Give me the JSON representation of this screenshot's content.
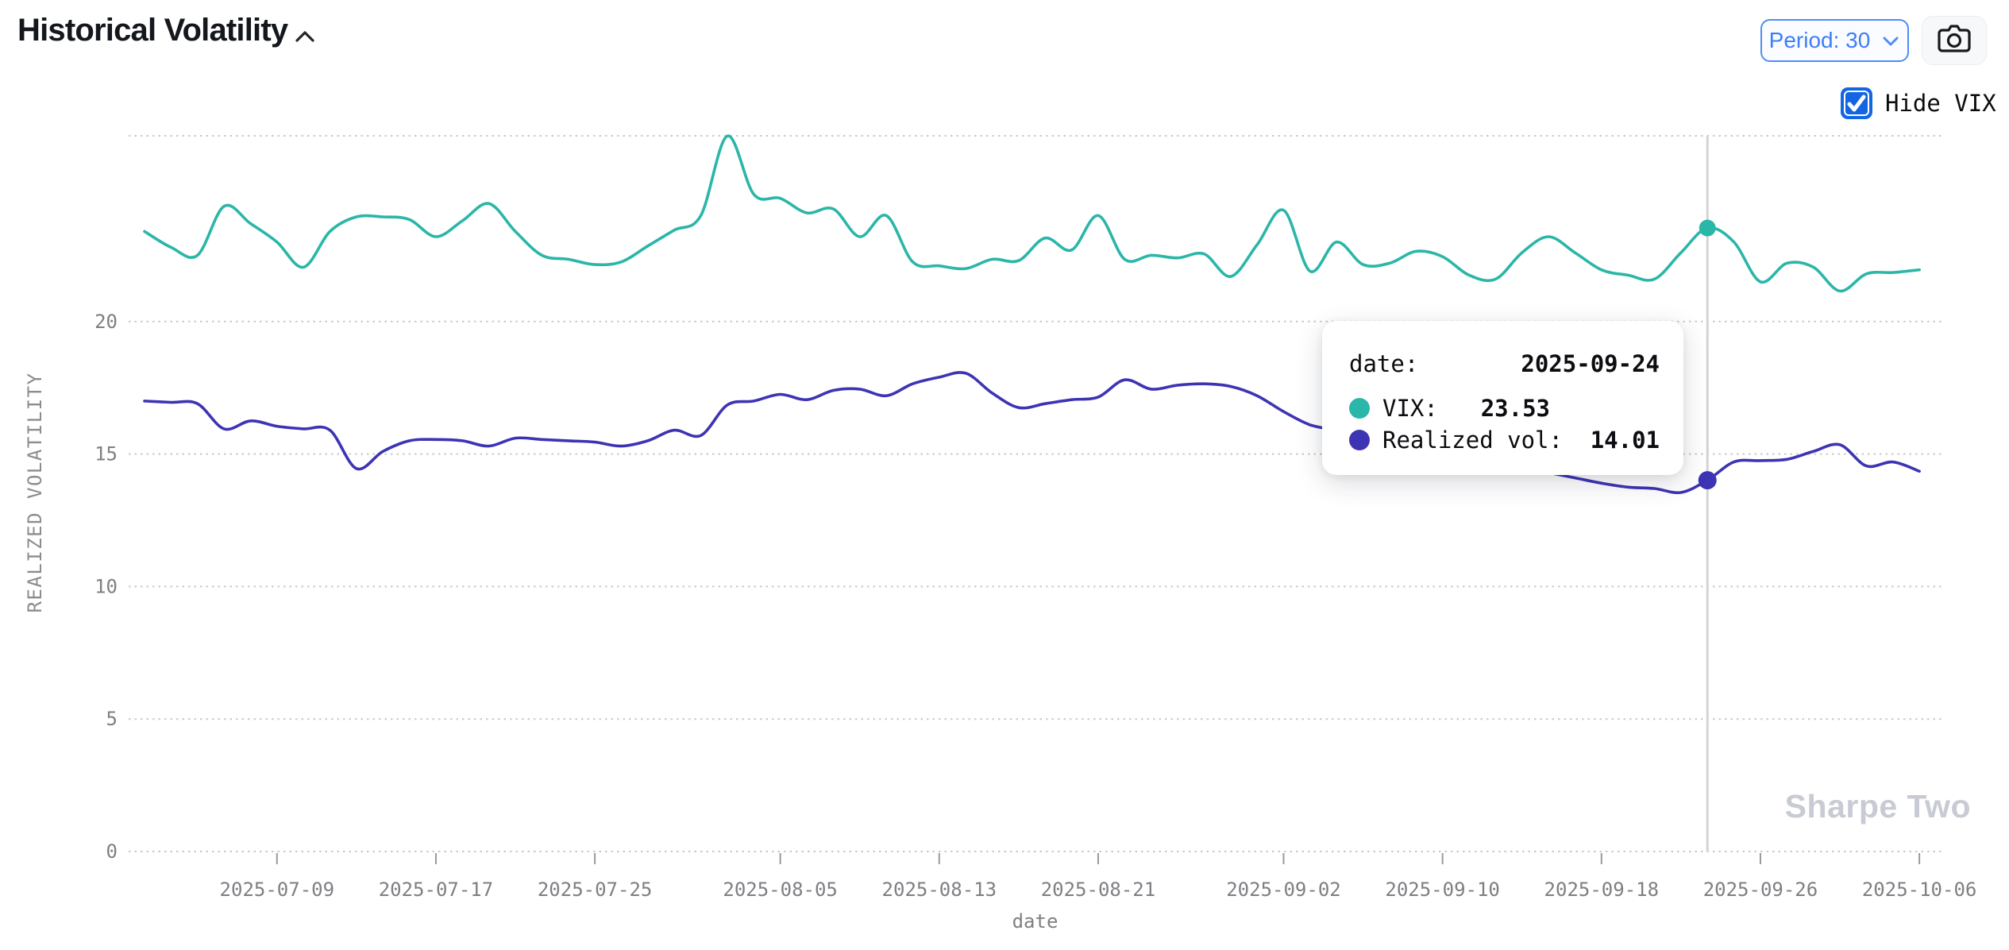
{
  "header": {
    "title": "Historical Volatility",
    "period_button_label": "Period: 30",
    "hide_vix_label": "Hide VIX"
  },
  "tooltip": {
    "date_label": "date:",
    "date_value": "2025-09-24",
    "vix_label": "VIX:",
    "vix_value": "23.53",
    "realized_label": "Realized vol:",
    "realized_value": "14.01"
  },
  "watermark": "Sharpe Two",
  "colors": {
    "vix_line": "#2ab6a8",
    "realized_line": "#3d34b4",
    "accent_blue": "#3d7ef7",
    "checkbox_blue": "#1266e3",
    "grid": "#c9c9c9",
    "axis_text": "#7d7f82",
    "hover_line": "#d4d4d4",
    "watermark_gray": "#c8cbd3"
  },
  "chart_data": {
    "type": "line",
    "title": "Historical Volatility",
    "xlabel": "date",
    "ylabel": "REALIZED VOLATILITY",
    "grid": "horizontal dotted",
    "legend_position": "none",
    "ylim": [
      0,
      27
    ],
    "yticks": [
      0,
      5,
      10,
      15,
      20
    ],
    "x_tick_labels": [
      "2025-07-09",
      "2025-07-17",
      "2025-07-25",
      "2025-08-05",
      "2025-08-13",
      "2025-08-21",
      "2025-09-02",
      "2025-09-10",
      "2025-09-18",
      "2025-09-26",
      "2025-10-06"
    ],
    "x": [
      "2025-07-01",
      "2025-07-02",
      "2025-07-03",
      "2025-07-07",
      "2025-07-08",
      "2025-07-09",
      "2025-07-10",
      "2025-07-11",
      "2025-07-14",
      "2025-07-15",
      "2025-07-16",
      "2025-07-17",
      "2025-07-18",
      "2025-07-21",
      "2025-07-22",
      "2025-07-23",
      "2025-07-24",
      "2025-07-25",
      "2025-07-28",
      "2025-07-29",
      "2025-07-30",
      "2025-07-31",
      "2025-08-01",
      "2025-08-04",
      "2025-08-05",
      "2025-08-06",
      "2025-08-07",
      "2025-08-08",
      "2025-08-11",
      "2025-08-12",
      "2025-08-13",
      "2025-08-14",
      "2025-08-15",
      "2025-08-18",
      "2025-08-19",
      "2025-08-20",
      "2025-08-21",
      "2025-08-22",
      "2025-08-25",
      "2025-08-26",
      "2025-08-27",
      "2025-08-28",
      "2025-08-29",
      "2025-09-02",
      "2025-09-03",
      "2025-09-04",
      "2025-09-05",
      "2025-09-08",
      "2025-09-09",
      "2025-09-10",
      "2025-09-11",
      "2025-09-12",
      "2025-09-15",
      "2025-09-16",
      "2025-09-17",
      "2025-09-18",
      "2025-09-19",
      "2025-09-22",
      "2025-09-23",
      "2025-09-24",
      "2025-09-25",
      "2025-09-26",
      "2025-09-29",
      "2025-09-30",
      "2025-10-01",
      "2025-10-02",
      "2025-10-03",
      "2025-10-06"
    ],
    "series": [
      {
        "name": "VIX",
        "color": "#2ab6a8",
        "values": [
          23.4,
          22.8,
          22.5,
          24.35,
          23.7,
          23.0,
          22.05,
          23.4,
          23.95,
          23.95,
          23.85,
          23.2,
          23.8,
          24.45,
          23.4,
          22.5,
          22.35,
          22.15,
          22.25,
          22.85,
          23.45,
          24.0,
          27.0,
          24.8,
          24.65,
          24.1,
          24.25,
          23.2,
          24.0,
          22.25,
          22.1,
          22.0,
          22.35,
          22.3,
          23.15,
          22.7,
          24.0,
          22.35,
          22.5,
          22.4,
          22.55,
          21.7,
          22.9,
          24.2,
          21.9,
          23.0,
          22.15,
          22.2,
          22.65,
          22.45,
          21.75,
          21.6,
          22.6,
          23.2,
          22.6,
          21.95,
          21.75,
          21.6,
          22.6,
          23.53,
          23.0,
          21.5,
          22.2,
          22.05,
          21.15,
          21.8,
          21.85,
          21.95
        ]
      },
      {
        "name": "Realized vol",
        "color": "#3d34b4",
        "values": [
          17.0,
          16.95,
          16.9,
          15.95,
          16.25,
          16.05,
          15.95,
          15.9,
          14.45,
          15.1,
          15.5,
          15.55,
          15.5,
          15.3,
          15.6,
          15.55,
          15.5,
          15.45,
          15.3,
          15.5,
          15.9,
          15.7,
          16.85,
          17.0,
          17.25,
          17.05,
          17.4,
          17.45,
          17.2,
          17.65,
          17.9,
          18.05,
          17.3,
          16.75,
          16.9,
          17.05,
          17.15,
          17.8,
          17.45,
          17.6,
          17.65,
          17.55,
          17.2,
          16.6,
          16.1,
          15.9,
          15.7,
          15.5,
          15.35,
          15.15,
          14.95,
          14.75,
          14.5,
          14.3,
          14.1,
          13.9,
          13.75,
          13.7,
          13.55,
          14.01,
          14.7,
          14.75,
          14.8,
          15.1,
          15.35,
          14.55,
          14.7,
          14.35
        ]
      }
    ],
    "hover": {
      "date": "2025-09-24",
      "index": 59,
      "VIX": 23.53,
      "Realized vol": 14.01
    }
  }
}
